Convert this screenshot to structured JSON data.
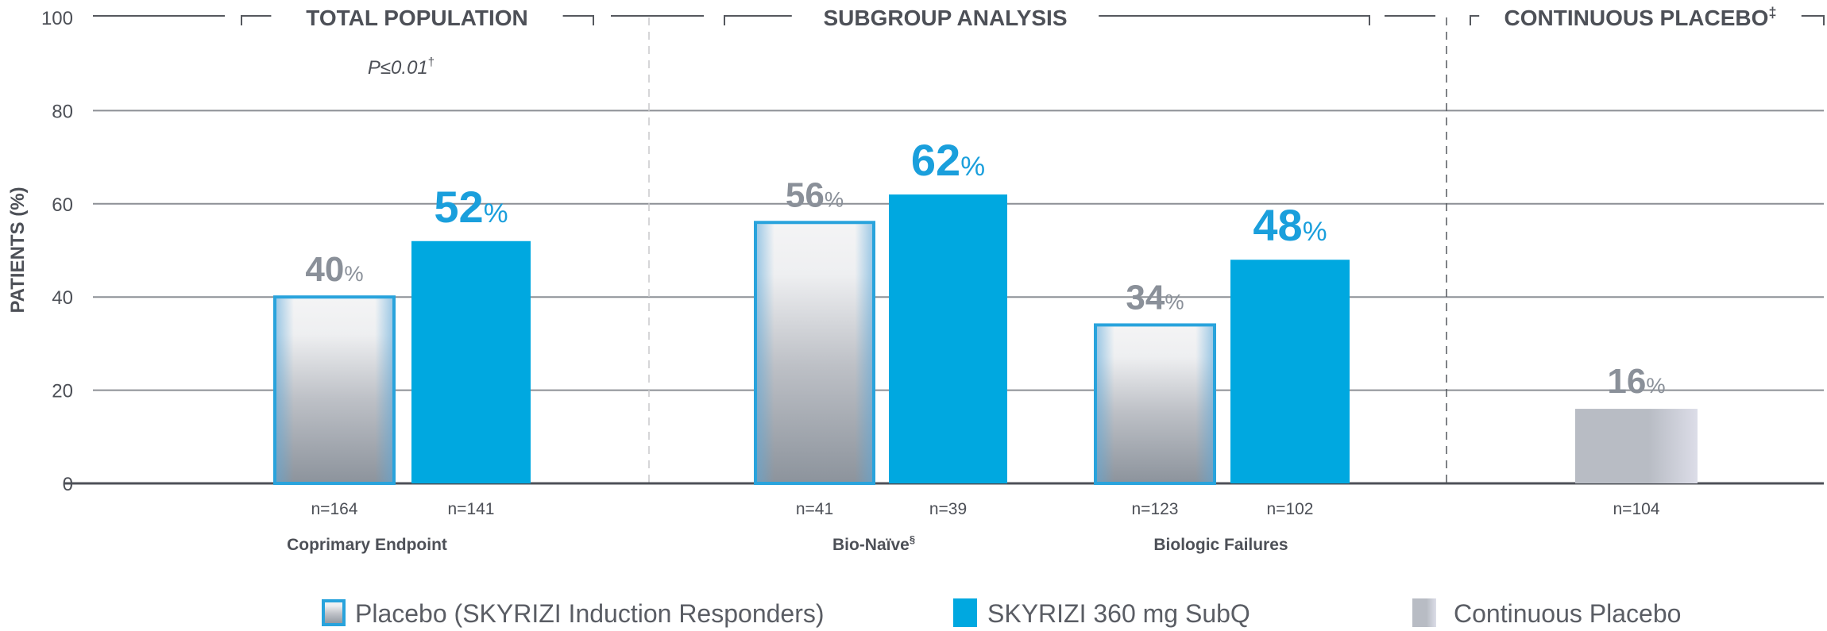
{
  "chart_data": {
    "type": "bar",
    "ylabel": "PATIENTS (%)",
    "ylim": [
      0,
      100
    ],
    "yticks": [
      0,
      20,
      40,
      60,
      80,
      100
    ],
    "grid": true,
    "legend_placement": "bottom",
    "sections": [
      {
        "label": "TOTAL POPULATION",
        "annotation": "P≤0.01",
        "annotation_mark": "†"
      },
      {
        "label": "SUBGROUP ANALYSIS"
      },
      {
        "label": "CONTINUOUS PLACEBO",
        "mark": "‡"
      }
    ],
    "groups": [
      {
        "label": "Coprimary Endpoint",
        "mark": "",
        "bars": [
          {
            "series": 0,
            "value": 40,
            "label": "40",
            "n": "n=164"
          },
          {
            "series": 1,
            "value": 52,
            "label": "52",
            "n": "n=141"
          }
        ]
      },
      {
        "label": "Bio-Naïve",
        "mark": "§",
        "bars": [
          {
            "series": 0,
            "value": 56,
            "label": "56",
            "n": "n=41"
          },
          {
            "series": 1,
            "value": 62,
            "label": "62",
            "n": "n=39"
          }
        ]
      },
      {
        "label": "Biologic Failures",
        "mark": "",
        "bars": [
          {
            "series": 0,
            "value": 34,
            "label": "34",
            "n": "n=123"
          },
          {
            "series": 1,
            "value": 48,
            "label": "48",
            "n": "n=102"
          }
        ]
      },
      {
        "label": "",
        "mark": "",
        "bars": [
          {
            "series": 2,
            "value": 16,
            "label": "16",
            "n": "n=104"
          }
        ]
      }
    ],
    "series": [
      {
        "name": "Placebo (SKYRIZI Induction Responders)",
        "color": "#29a3dc"
      },
      {
        "name": "SKYRIZI 360 mg SubQ",
        "color": "#00a8e0"
      },
      {
        "name": "Continuous Placebo",
        "color": "#b8bcc4"
      }
    ],
    "percent_sign": "%",
    "colors": {
      "text": "#4d5057",
      "placebo_label": "#8a9099",
      "skyrizi_label": "#1a9fdc",
      "grid": "#8c8f95"
    }
  }
}
